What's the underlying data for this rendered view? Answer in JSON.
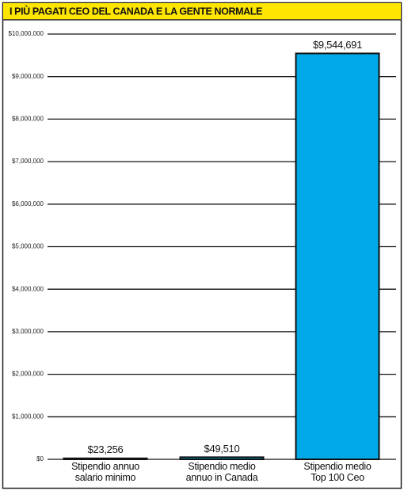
{
  "chart_data": {
    "type": "bar",
    "title": "I PIÙ PAGATI CEO DEL CANADA E LA GENTE NORMALE",
    "categories": [
      "Stipendio annuo\nsalario minimo",
      "Stipendio medio\nannuo in Canada",
      "Stipendio medio\nTop 100 Ceo"
    ],
    "values": [
      23256,
      49510,
      9544691
    ],
    "value_labels": [
      "$23,256",
      "$49,510",
      "$9,544,691"
    ],
    "color": "#00a8e8",
    "ylim": [
      0,
      10000000
    ],
    "yticks": [
      {
        "value": 0,
        "label": "$0"
      },
      {
        "value": 1000000,
        "label": "$1,000,000"
      },
      {
        "value": 2000000,
        "label": "$2,000,000"
      },
      {
        "value": 3000000,
        "label": "$3,000,000"
      },
      {
        "value": 4000000,
        "label": "$4,000,000"
      },
      {
        "value": 5000000,
        "label": "$5,000,000"
      },
      {
        "value": 6000000,
        "label": "$6,000,000"
      },
      {
        "value": 7000000,
        "label": "$7,000,000"
      },
      {
        "value": 8000000,
        "label": "$8,000,000"
      },
      {
        "value": 9000000,
        "label": "$9,000,000"
      },
      {
        "value": 10000000,
        "label": "$10,000,000"
      }
    ],
    "grid": true
  }
}
